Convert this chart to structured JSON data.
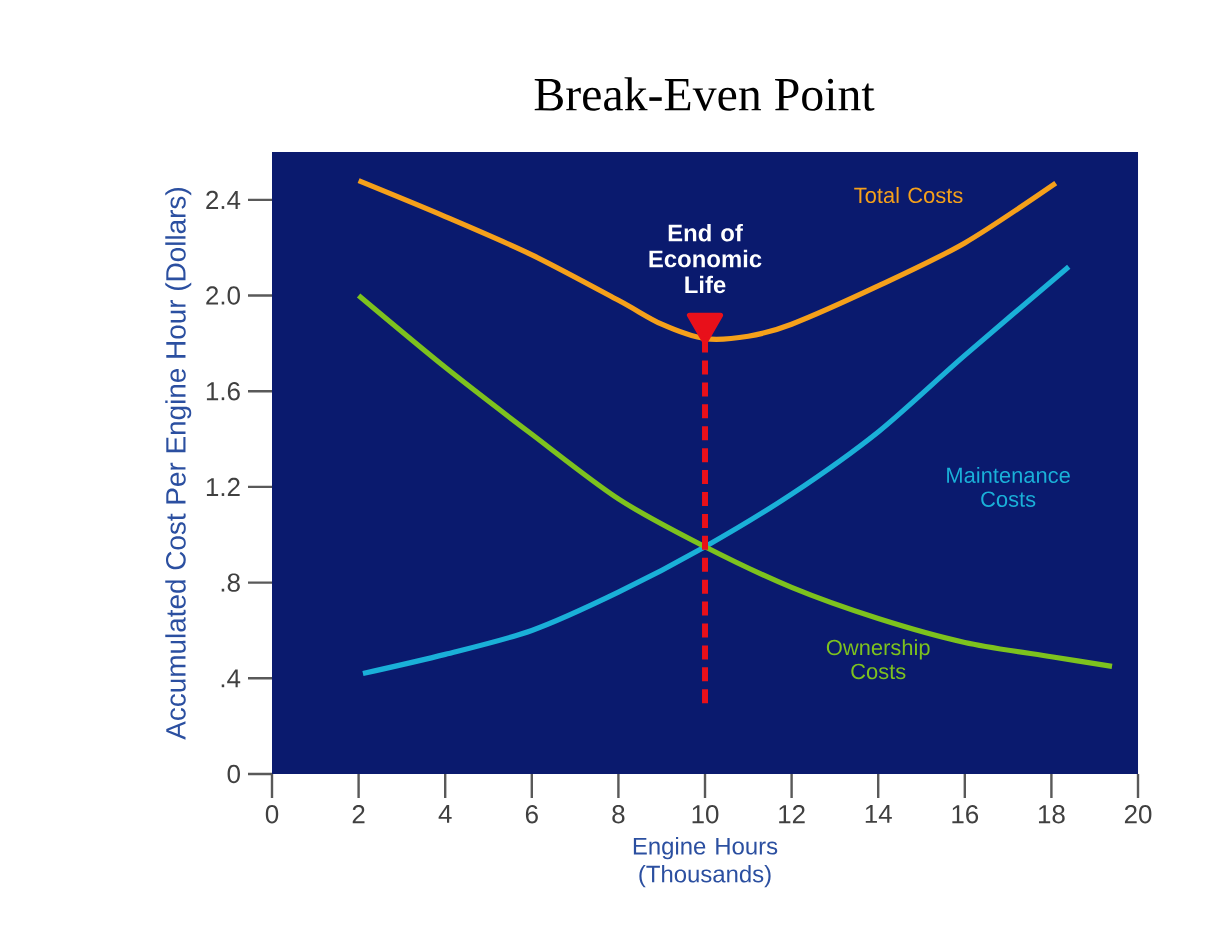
{
  "chart_data": {
    "type": "line",
    "title": "Break-Even Point",
    "xlabel": "Engine Hours (Thousands)",
    "ylabel": "Accumulated Cost Per Engine Hour (Dollars)",
    "xlim": [
      0,
      20
    ],
    "ylim": [
      0,
      2.6
    ],
    "xticks": [
      0,
      2,
      4,
      6,
      8,
      10,
      12,
      14,
      16,
      18,
      20
    ],
    "yticks": [
      0,
      {
        "value": 0.4,
        "label": ".4"
      },
      {
        "value": 0.8,
        "label": ".8"
      },
      1.2,
      1.6,
      {
        "value": 2,
        "label": "2.0"
      },
      2.4
    ],
    "series": [
      {
        "name": "Total Costs",
        "color": "#f5a01a",
        "x": [
          2,
          4,
          6,
          8,
          9,
          10,
          11,
          12,
          14,
          16,
          18.1
        ],
        "values": [
          2.48,
          2.33,
          2.17,
          1.98,
          1.88,
          1.82,
          1.83,
          1.88,
          2.04,
          2.22,
          2.47
        ]
      },
      {
        "name": "Maintenance Costs",
        "color": "#1ab0d8",
        "x": [
          2.1,
          4,
          6,
          8,
          10,
          12,
          14,
          16,
          18.4
        ],
        "values": [
          0.42,
          0.5,
          0.6,
          0.76,
          0.95,
          1.17,
          1.43,
          1.75,
          2.12
        ]
      },
      {
        "name": "Ownership Costs",
        "color": "#7dc21e",
        "x": [
          2,
          4,
          6,
          8,
          10,
          12,
          14,
          16,
          18,
          19.4
        ],
        "values": [
          2.0,
          1.7,
          1.42,
          1.15,
          0.95,
          0.78,
          0.65,
          0.55,
          0.49,
          0.45
        ]
      },
      {
        "type": "scatter",
        "marker": "triangle",
        "color": "#e8101a",
        "x": [
          10
        ],
        "values": [
          1.88
        ]
      }
    ],
    "ref_lines": [
      {
        "axis": "x",
        "value": 10,
        "label": "End of Economic Life",
        "color": "#e8101a",
        "line_style": "dashed"
      }
    ],
    "grid": false,
    "marker": "none"
  }
}
